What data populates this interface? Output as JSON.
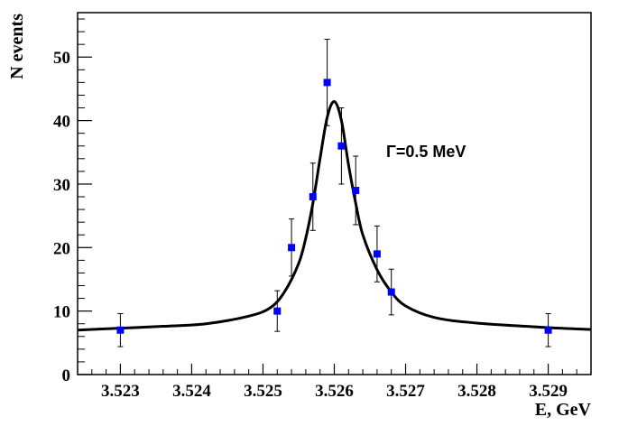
{
  "chart_data": {
    "type": "scatter",
    "title": "",
    "xlabel": "E, GeV",
    "ylabel": "N events",
    "xlim": [
      3.5224,
      3.5296
    ],
    "ylim": [
      0,
      57
    ],
    "grid": false,
    "legend": "none",
    "x_ticks": [
      3.523,
      3.524,
      3.525,
      3.526,
      3.527,
      3.528,
      3.529
    ],
    "x_tick_labels": [
      "3.523",
      "3.524",
      "3.525",
      "3.526",
      "3.527",
      "3.528",
      "3.529"
    ],
    "y_ticks": [
      0,
      10,
      20,
      30,
      40,
      50
    ],
    "y_tick_labels": [
      "0",
      "10",
      "20",
      "30",
      "40",
      "50"
    ],
    "annotation": "Γ=0.5 MeV",
    "series": [
      {
        "name": "data",
        "style": "markers-with-errorbars",
        "color": "#0000ff",
        "points": [
          {
            "x": 3.523,
            "y": 7,
            "err": 2.6
          },
          {
            "x": 3.5252,
            "y": 10,
            "err": 3.2
          },
          {
            "x": 3.5254,
            "y": 20,
            "err": 4.5
          },
          {
            "x": 3.5257,
            "y": 28,
            "err": 5.3
          },
          {
            "x": 3.5259,
            "y": 46,
            "err": 6.8
          },
          {
            "x": 3.5261,
            "y": 36,
            "err": 6.0
          },
          {
            "x": 3.5263,
            "y": 29,
            "err": 5.4
          },
          {
            "x": 3.5266,
            "y": 19,
            "err": 4.4
          },
          {
            "x": 3.5268,
            "y": 13,
            "err": 3.6
          },
          {
            "x": 3.529,
            "y": 7,
            "err": 2.6
          }
        ]
      },
      {
        "name": "fit",
        "style": "line",
        "color": "#000000",
        "points": [
          {
            "x": 3.5224,
            "y": 7.0
          },
          {
            "x": 3.523,
            "y": 7.3
          },
          {
            "x": 3.5236,
            "y": 7.6
          },
          {
            "x": 3.5242,
            "y": 8.0
          },
          {
            "x": 3.5248,
            "y": 9.2
          },
          {
            "x": 3.5251,
            "y": 10.5
          },
          {
            "x": 3.5253,
            "y": 13.0
          },
          {
            "x": 3.5255,
            "y": 17.5
          },
          {
            "x": 3.5256,
            "y": 21.5
          },
          {
            "x": 3.5257,
            "y": 27.0
          },
          {
            "x": 3.5258,
            "y": 34.0
          },
          {
            "x": 3.5259,
            "y": 40.5
          },
          {
            "x": 3.526,
            "y": 43.0
          },
          {
            "x": 3.5261,
            "y": 40.0
          },
          {
            "x": 3.5262,
            "y": 33.0
          },
          {
            "x": 3.5263,
            "y": 27.0
          },
          {
            "x": 3.5264,
            "y": 22.0
          },
          {
            "x": 3.5266,
            "y": 16.5
          },
          {
            "x": 3.5268,
            "y": 13.0
          },
          {
            "x": 3.527,
            "y": 10.8
          },
          {
            "x": 3.5274,
            "y": 9.0
          },
          {
            "x": 3.528,
            "y": 8.1
          },
          {
            "x": 3.529,
            "y": 7.4
          },
          {
            "x": 3.5296,
            "y": 7.1
          }
        ]
      }
    ]
  }
}
